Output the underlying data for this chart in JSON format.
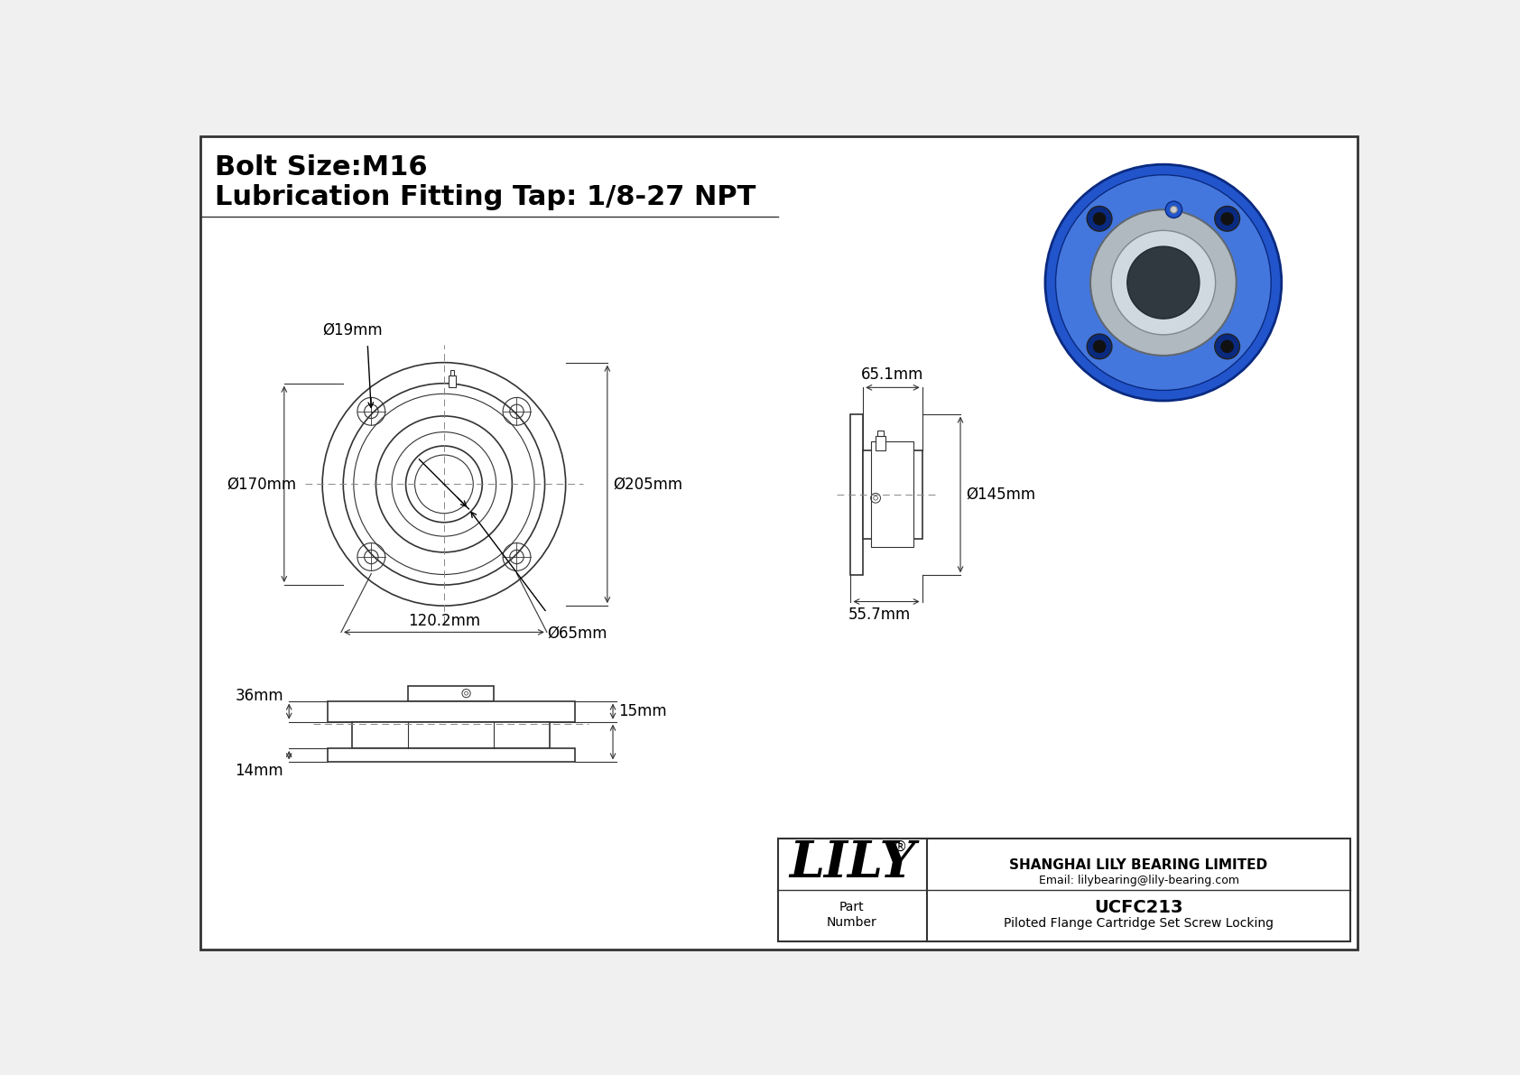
{
  "title_line1": "Bolt Size:M16",
  "title_line2": "Lubrication Fitting Tap: 1/8-27 NPT",
  "bg_color": "#f0f0f0",
  "line_color": "#333333",
  "part_number": "UCFC213",
  "part_desc": "Piloted Flange Cartridge Set Screw Locking",
  "company": "SHANGHAI LILY BEARING LIMITED",
  "email": "Email: lilybearing@lily-bearing.com",
  "lily_text": "LILY",
  "reg_mark": "®",
  "dims": {
    "d19": "Ø19mm",
    "d170": "Ø170mm",
    "d205": "Ø205mm",
    "d65": "Ø65mm",
    "d120": "120.2mm",
    "d65_1": "65.1mm",
    "d145": "Ø145mm",
    "d55": "55.7mm",
    "d36": "36mm",
    "d15": "15mm",
    "d14": "14mm"
  }
}
